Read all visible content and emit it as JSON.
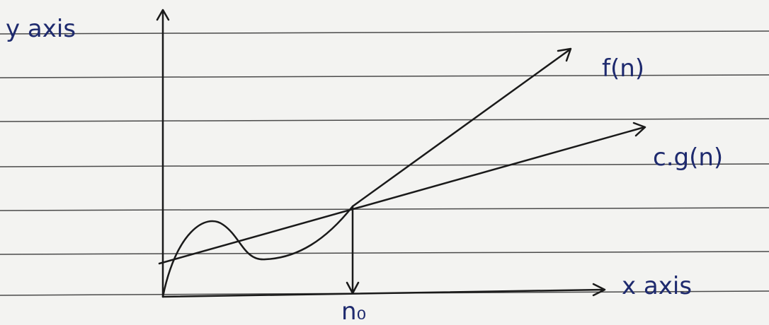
{
  "axes": {
    "y_label": "y axis",
    "x_label": "x axis"
  },
  "curves": [
    {
      "label": "f(n)"
    },
    {
      "label": "c.g(n)"
    }
  ],
  "marker": {
    "label": "n₀"
  }
}
